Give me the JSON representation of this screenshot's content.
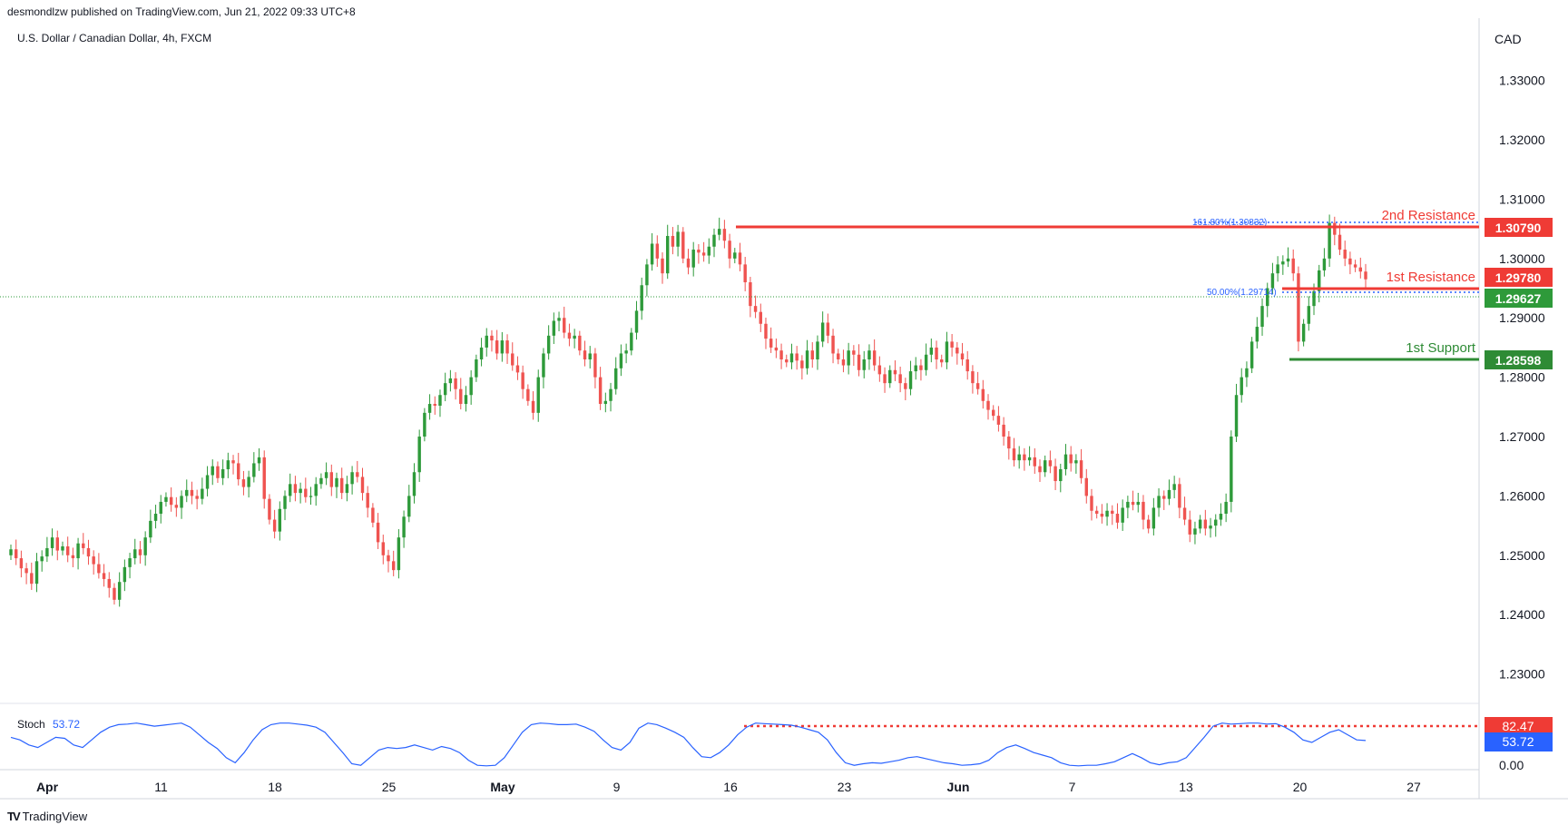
{
  "header": {
    "published_by": "desmondlzw published on TradingView.com, Jun 21, 2022 09:33 UTC+8"
  },
  "footer": {
    "brand": "TradingView"
  },
  "chart_data": {
    "type": "candlestick",
    "instrument": "U.S. Dollar / Canadian Dollar, 4h, FXCM",
    "currency_label": "CAD",
    "ylim": [
      1.2255,
      1.3405
    ],
    "y_ticks": [
      "1.33000",
      "1.32000",
      "1.31000",
      "1.30000",
      "1.29000",
      "1.28000",
      "1.27000",
      "1.26000",
      "1.25000",
      "1.24000",
      "1.23000"
    ],
    "x_ticks": [
      "Apr",
      "11",
      "18",
      "25",
      "May",
      "9",
      "16",
      "23",
      "Jun",
      "7",
      "13",
      "20",
      "27"
    ],
    "x_tick_index": [
      0,
      1,
      2,
      3,
      4,
      5,
      6,
      7,
      8,
      9,
      10,
      11,
      12
    ],
    "colors": {
      "up": "#26a69a",
      "up_body": "#2e9a3a",
      "down": "#ef5350",
      "support": "#2f8f3a",
      "resistance": "#ef3b35",
      "stoch": "#2962ff",
      "fib": "#2962ff"
    },
    "close_series": [
      1.251,
      1.2495,
      1.2478,
      1.247,
      1.2452,
      1.249,
      1.2498,
      1.2512,
      1.253,
      1.2508,
      1.2515,
      1.25,
      1.2495,
      1.252,
      1.2512,
      1.2498,
      1.2485,
      1.247,
      1.246,
      1.2445,
      1.2425,
      1.2455,
      1.248,
      1.2495,
      1.251,
      1.25,
      1.253,
      1.2558,
      1.257,
      1.259,
      1.2598,
      1.2585,
      1.258,
      1.26,
      1.261,
      1.26,
      1.2595,
      1.2612,
      1.2635,
      1.265,
      1.263,
      1.2645,
      1.266,
      1.2655,
      1.2628,
      1.2615,
      1.2632,
      1.2655,
      1.2665,
      1.2595,
      1.256,
      1.254,
      1.2578,
      1.26,
      1.262,
      1.2605,
      1.2612,
      1.2598,
      1.26,
      1.262,
      1.263,
      1.264,
      1.2615,
      1.263,
      1.2605,
      1.262,
      1.264,
      1.2632,
      1.2605,
      1.258,
      1.2555,
      1.2522,
      1.25,
      1.249,
      1.2475,
      1.253,
      1.2565,
      1.26,
      1.264,
      1.27,
      1.274,
      1.2755,
      1.2752,
      1.277,
      1.279,
      1.2798,
      1.278,
      1.2755,
      1.277,
      1.28,
      1.283,
      1.285,
      1.287,
      1.2862,
      1.284,
      1.2862,
      1.284,
      1.282,
      1.2808,
      1.278,
      1.276,
      1.274,
      1.28,
      1.284,
      1.287,
      1.2895,
      1.29,
      1.2875,
      1.2865,
      1.287,
      1.2845,
      1.283,
      1.284,
      1.28,
      1.2755,
      1.276,
      1.278,
      1.2815,
      1.284,
      1.2845,
      1.2875,
      1.2912,
      1.2955,
      1.299,
      1.3025,
      1.3,
      1.2975,
      1.3038,
      1.302,
      1.3045,
      1.3,
      1.2985,
      1.3015,
      1.301,
      1.3005,
      1.302,
      1.304,
      1.305,
      1.303,
      1.3,
      1.301,
      1.299,
      1.296,
      1.292,
      1.291,
      1.289,
      1.2865,
      1.285,
      1.2845,
      1.283,
      1.2825,
      1.284,
      1.2828,
      1.2815,
      1.2845,
      1.283,
      1.286,
      1.2892,
      1.287,
      1.284,
      1.283,
      1.282,
      1.2845,
      1.2838,
      1.2812,
      1.283,
      1.2845,
      1.282,
      1.2805,
      1.279,
      1.2812,
      1.2805,
      1.279,
      1.278,
      1.281,
      1.282,
      1.2812,
      1.2838,
      1.285,
      1.283,
      1.2825,
      1.286,
      1.285,
      1.284,
      1.283,
      1.281,
      1.279,
      1.278,
      1.276,
      1.2745,
      1.2735,
      1.272,
      1.27,
      1.268,
      1.266,
      1.267,
      1.266,
      1.2665,
      1.265,
      1.264,
      1.266,
      1.265,
      1.2625,
      1.2645,
      1.267,
      1.2655,
      1.266,
      1.263,
      1.26,
      1.2575,
      1.257,
      1.2565,
      1.2575,
      1.257,
      1.2555,
      1.258,
      1.259,
      1.2585,
      1.259,
      1.256,
      1.2545,
      1.258,
      1.26,
      1.2595,
      1.261,
      1.262,
      1.258,
      1.256,
      1.2535,
      1.2545,
      1.256,
      1.2545,
      1.255,
      1.256,
      1.257,
      1.259,
      1.27,
      1.277,
      1.28,
      1.2815,
      1.286,
      1.2885,
      1.292,
      1.295,
      1.2975,
      1.299,
      1.2995,
      1.3,
      1.2975,
      1.286,
      1.289,
      1.292,
      1.2945,
      1.298,
      1.3,
      1.306,
      1.304,
      1.3015,
      1.3,
      1.299,
      1.2985,
      1.2978,
      1.2965
    ]
  },
  "price_labels": {
    "second_resistance": {
      "name": "2nd Resistance",
      "value": "1.30790"
    },
    "first_resistance": {
      "name": "1st Resistance",
      "value": "1.29780"
    },
    "current_price": {
      "value": "1.29627"
    },
    "first_support": {
      "name": "1st Support",
      "value": "1.28598"
    }
  },
  "fib_labels": {
    "fib_161": "161.80%(1.30832)",
    "fib_50": "50.00%(1.29714)"
  },
  "stoch": {
    "label": "Stoch",
    "value": "53.72",
    "level_label": "82.47",
    "zero_label": "0.00",
    "series": [
      60,
      55,
      45,
      40,
      50,
      60,
      58,
      45,
      40,
      55,
      70,
      80,
      85,
      86,
      88,
      85,
      82,
      84,
      86,
      88,
      80,
      65,
      50,
      38,
      20,
      10,
      30,
      55,
      75,
      85,
      88,
      88,
      86,
      84,
      80,
      70,
      50,
      30,
      8,
      5,
      20,
      35,
      40,
      38,
      40,
      45,
      40,
      35,
      42,
      38,
      30,
      15,
      5,
      4,
      5,
      20,
      45,
      70,
      85,
      88,
      87,
      85,
      85,
      86,
      80,
      72,
      55,
      40,
      35,
      50,
      78,
      88,
      85,
      78,
      70,
      60,
      40,
      22,
      20,
      30,
      45,
      65,
      80,
      88,
      87,
      86,
      85,
      84,
      80,
      75,
      70,
      55,
      30,
      10,
      5,
      8,
      10,
      9,
      12,
      15,
      20,
      22,
      18,
      14,
      10,
      8,
      5,
      6,
      8,
      15,
      30,
      40,
      45,
      38,
      30,
      25,
      20,
      10,
      5,
      4,
      5,
      5,
      8,
      12,
      20,
      28,
      20,
      10,
      6,
      10,
      12,
      20,
      40,
      60,
      82,
      88,
      86,
      87,
      88,
      88,
      86,
      87,
      80,
      70,
      55,
      50,
      60,
      70,
      75,
      65,
      55,
      53.72
    ]
  }
}
